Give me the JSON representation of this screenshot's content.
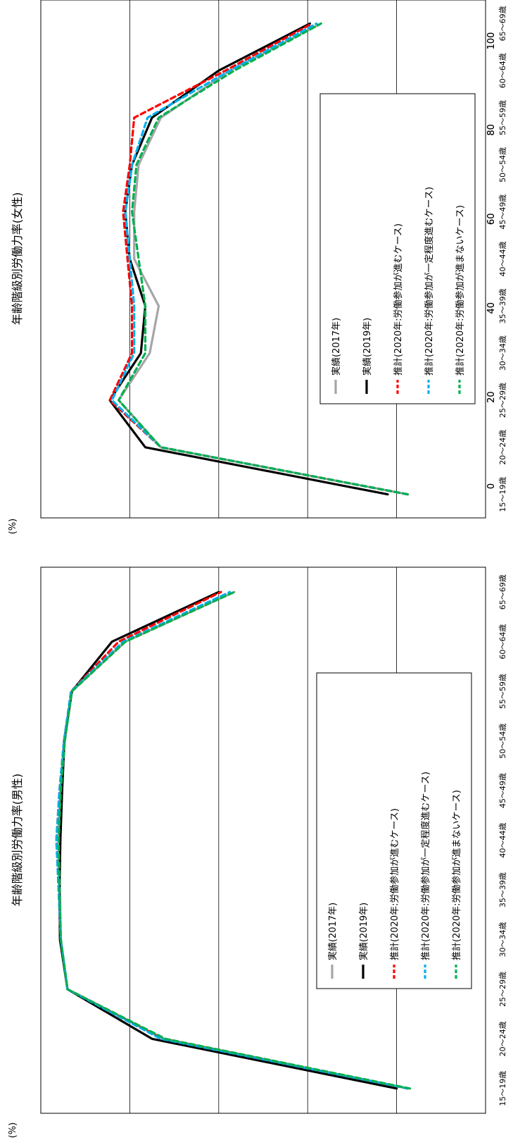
{
  "chart_data": [
    {
      "type": "line",
      "title": "年齢階級別労働力率(男性)",
      "ylabel": "(%)",
      "ylim": [
        0,
        100
      ],
      "yticks": [
        0,
        20,
        40,
        60,
        80,
        100
      ],
      "grid": true,
      "legend_position": "bottom-right",
      "categories": [
        "15～19歳",
        "20～24歳",
        "25～29歳",
        "30～34歳",
        "35～39歳",
        "40～44歳",
        "45～49歳",
        "50～54歳",
        "55～59歳",
        "60～64歳",
        "65～69歳"
      ],
      "series": [
        {
          "name": "実績(2017年)",
          "color": "#a6a6a6",
          "dash": "solid",
          "values": [
            17.5,
            72.5,
            94,
            95.5,
            95.7,
            96.0,
            95.5,
            94.8,
            93.0,
            81.0,
            56.5
          ]
        },
        {
          "name": "実績(2019年)",
          "color": "#000000",
          "dash": "solid",
          "values": [
            20,
            75,
            94,
            95.7,
            95.8,
            95.6,
            95.2,
            94.7,
            93.0,
            84.0,
            60.0
          ]
        },
        {
          "name": "推計(2020年:労働参加が進むケース)",
          "color": "#ff0000",
          "dash": "dashed",
          "values": [
            17.5,
            72.5,
            94,
            95.5,
            96.0,
            96.5,
            95.8,
            94.8,
            93.2,
            82.5,
            59.5
          ]
        },
        {
          "name": "推計(2020年:労働参加が一定程度進むケース)",
          "color": "#00b0f0",
          "dash": "dashed",
          "values": [
            17.5,
            73,
            94,
            95.5,
            96.0,
            96.5,
            95.8,
            94.8,
            93.2,
            81.5,
            57.5
          ]
        },
        {
          "name": "推計(2020年:労働参加が進まないケース)",
          "color": "#00b050",
          "dash": "dashed",
          "values": [
            17.0,
            72,
            94,
            95.5,
            95.8,
            96.0,
            95.5,
            94.6,
            93.0,
            81.0,
            56.5
          ]
        }
      ]
    },
    {
      "type": "line",
      "title": "年齢階級別労働力率(女性)",
      "ylabel": "(%)",
      "ylim": [
        0,
        100
      ],
      "yticks": [
        0,
        20,
        40,
        60,
        80,
        100
      ],
      "grid": true,
      "legend_position": "bottom-right",
      "categories": [
        "15～19歳",
        "20～24歳",
        "25～29歳",
        "30～34歳",
        "35～39歳",
        "40～44歳",
        "45～49歳",
        "50～54歳",
        "55～59歳",
        "60～64歳",
        "65～69歳"
      ],
      "series": [
        {
          "name": "実績(2017年)",
          "color": "#a6a6a6",
          "dash": "solid",
          "values": [
            17.5,
            73,
            82.5,
            75.5,
            73.5,
            79,
            79,
            78,
            73,
            57.5,
            37.0
          ]
        },
        {
          "name": "実績(2019年)",
          "color": "#000000",
          "dash": "solid",
          "values": [
            22,
            76.5,
            84.5,
            77.5,
            76.5,
            80,
            81,
            79.5,
            75,
            60,
            39.5
          ]
        },
        {
          "name": "推計(2020年:労働参加が進むケース)",
          "color": "#ff0000",
          "dash": "dashed",
          "values": [
            17.5,
            73,
            84.5,
            79.5,
            79.5,
            80.5,
            81.5,
            80.0,
            79.0,
            58.5,
            39.0
          ]
        },
        {
          "name": "推計(2020年:労働参加が一定程度進むケース)",
          "color": "#00b0f0",
          "dash": "dashed",
          "values": [
            17.5,
            73,
            84,
            79.0,
            79.0,
            80.0,
            81.0,
            79.5,
            76.0,
            57.5,
            38.0
          ]
        },
        {
          "name": "推計(2020年:労働参加が進まないケース)",
          "color": "#00b050",
          "dash": "dashed",
          "values": [
            17.5,
            73,
            82.5,
            76.5,
            76.5,
            78.0,
            79.5,
            78.5,
            73.5,
            56.5,
            37.0
          ]
        }
      ]
    }
  ]
}
